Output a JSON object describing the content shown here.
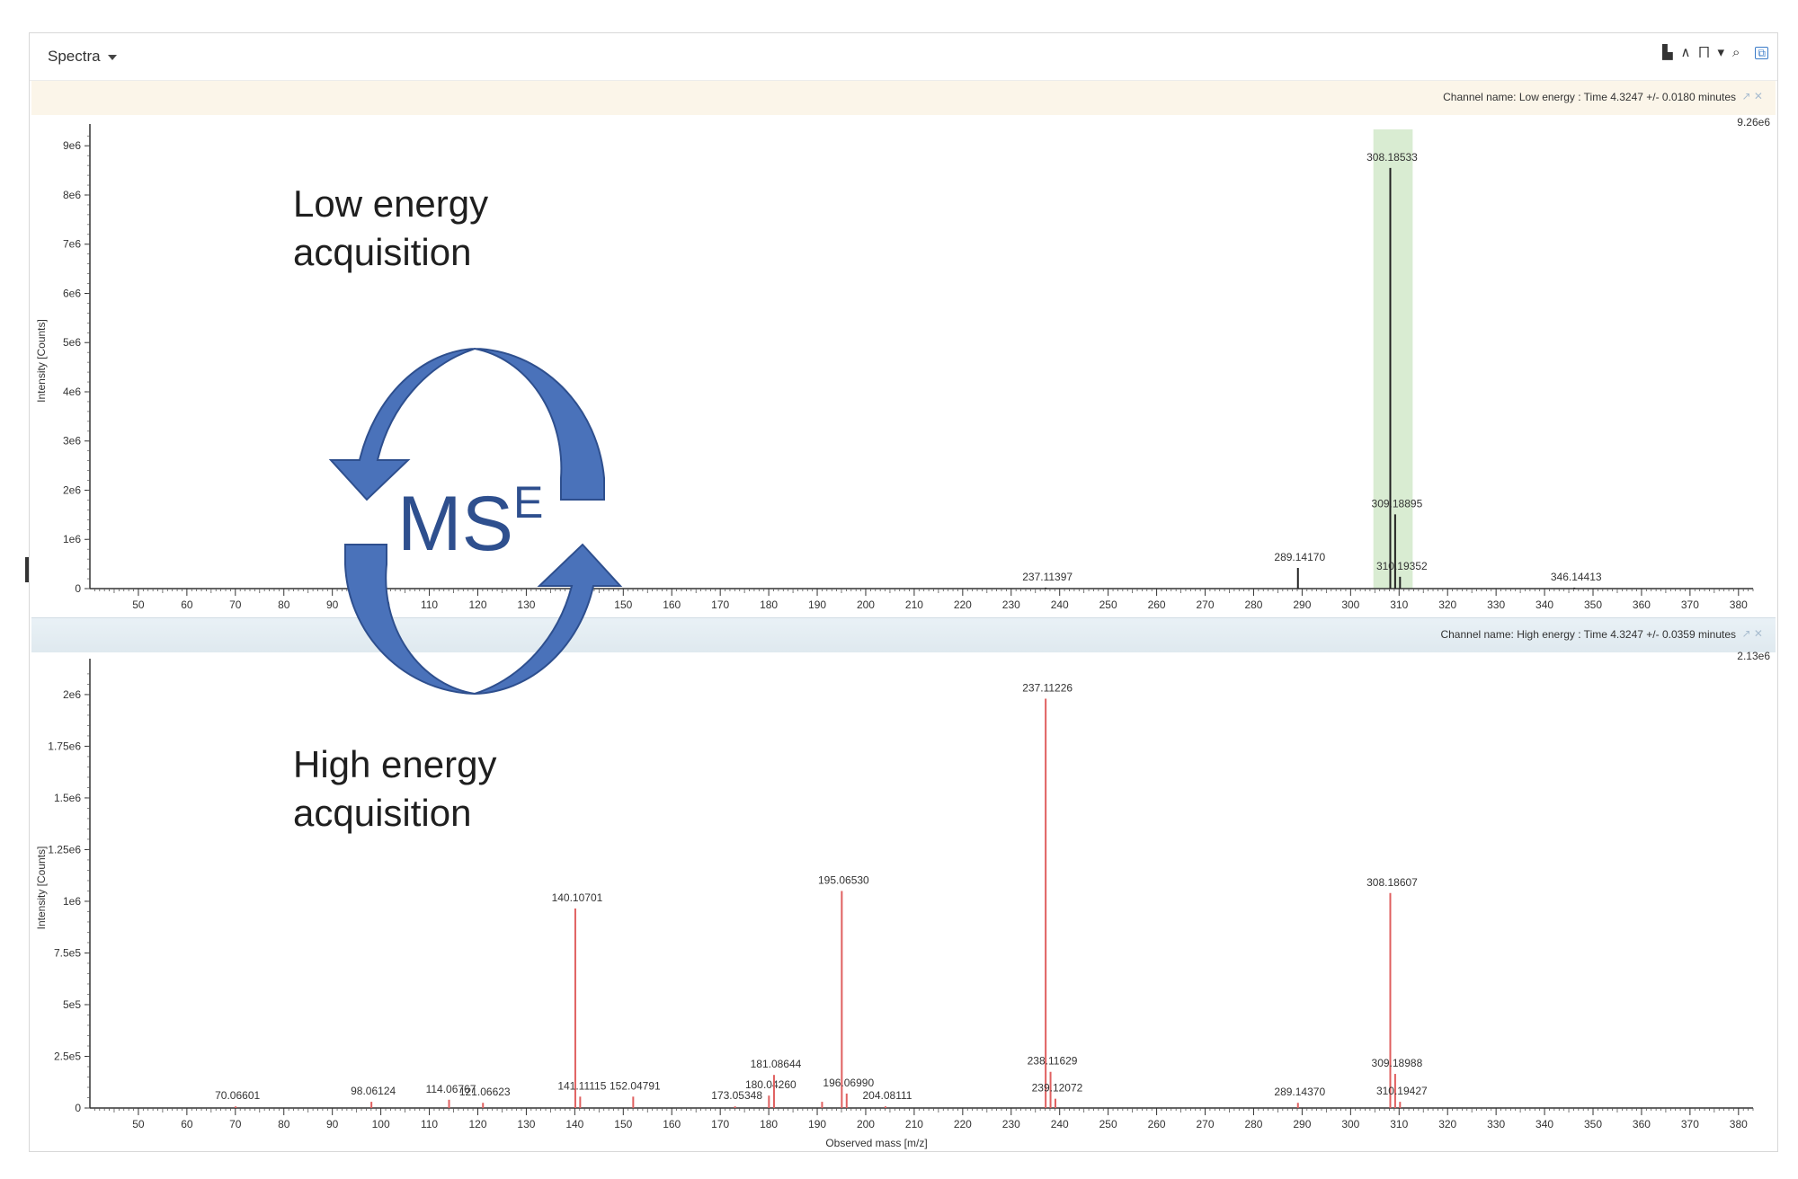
{
  "toolbar": {
    "menu_label": "Spectra",
    "tools": [
      "bar-chart-icon",
      "peak-label-icon",
      "mass-label-icon",
      "dropdown-icon",
      "zoom-icon"
    ]
  },
  "low_panel": {
    "channel_label": "Channel name: Low energy : Time 4.3247 +/- 0.0180 minutes",
    "max_label": "9.26e6",
    "ylabel": "Intensity [Counts]"
  },
  "high_panel": {
    "channel_label": "Channel name: High energy : Time 4.3247 +/- 0.0359 minutes",
    "max_label": "2.13e6",
    "ylabel": "Intensity [Counts]",
    "xlabel": "Observed mass [m/z]"
  },
  "overlay": {
    "low_text": [
      "Low energy",
      "acquisition"
    ],
    "high_text": [
      "High energy",
      "acquisition"
    ],
    "mse_main": "MS",
    "mse_sup": "E",
    "arrow_color": "#3a5fa6",
    "arrow_fill": "#4a72ba"
  },
  "chart_data": [
    {
      "type": "bar",
      "title": "",
      "ylabel": "Intensity [Counts]",
      "xlim": [
        40,
        383
      ],
      "ylim": [
        0,
        9260000
      ],
      "xticks": [
        50,
        60,
        70,
        80,
        90,
        100,
        110,
        120,
        130,
        140,
        150,
        160,
        170,
        180,
        190,
        200,
        210,
        220,
        230,
        240,
        250,
        260,
        270,
        280,
        290,
        300,
        310,
        320,
        330,
        340,
        350,
        360,
        370,
        380
      ],
      "yticks": [
        {
          "v": 0,
          "label": "0"
        },
        {
          "v": 1000000,
          "label": "1e6"
        },
        {
          "v": 2000000,
          "label": "2e6"
        },
        {
          "v": 3000000,
          "label": "3e6"
        },
        {
          "v": 4000000,
          "label": "4e6"
        },
        {
          "v": 5000000,
          "label": "5e6"
        },
        {
          "v": 6000000,
          "label": "6e6"
        },
        {
          "v": 7000000,
          "label": "7e6"
        },
        {
          "v": 8000000,
          "label": "8e6"
        },
        {
          "v": 9000000,
          "label": "9e6"
        }
      ],
      "highlight": {
        "from": 304.7,
        "to": 312.8,
        "color": "#d9ecd2"
      },
      "line_color": "#222222",
      "peaks": [
        {
          "x": 237.11397,
          "y": 20000,
          "label": "237.11397"
        },
        {
          "x": 289.1417,
          "y": 420000,
          "label": "289.14170"
        },
        {
          "x": 308.18533,
          "y": 8550000,
          "label": "308.18533"
        },
        {
          "x": 309.18895,
          "y": 1510000,
          "label": "309.18895"
        },
        {
          "x": 310.19352,
          "y": 240000,
          "label": "310.19352"
        },
        {
          "x": 346.14413,
          "y": 20000,
          "label": "346.14413"
        }
      ]
    },
    {
      "type": "bar",
      "title": "",
      "ylabel": "Intensity [Counts]",
      "xlabel": "Observed mass [m/z]",
      "xlim": [
        40,
        383
      ],
      "ylim": [
        0,
        2130000
      ],
      "xticks": [
        50,
        60,
        70,
        80,
        90,
        100,
        110,
        120,
        130,
        140,
        150,
        160,
        170,
        180,
        190,
        200,
        210,
        220,
        230,
        240,
        250,
        260,
        270,
        280,
        290,
        300,
        310,
        320,
        330,
        340,
        350,
        360,
        370,
        380
      ],
      "yticks": [
        {
          "v": 0,
          "label": "0"
        },
        {
          "v": 250000,
          "label": "2.5e5"
        },
        {
          "v": 500000,
          "label": "5e5"
        },
        {
          "v": 750000,
          "label": "7.5e5"
        },
        {
          "v": 1000000,
          "label": "1e6"
        },
        {
          "v": 1250000,
          "label": "1.25e6"
        },
        {
          "v": 1500000,
          "label": "1.5e6"
        },
        {
          "v": 1750000,
          "label": "1.75e6"
        },
        {
          "v": 2000000,
          "label": "2e6"
        }
      ],
      "line_color": "#e06060",
      "peaks": [
        {
          "x": 70.06601,
          "y": 8000,
          "label": "70.06601"
        },
        {
          "x": 98.06124,
          "y": 30000,
          "label": "98.06124"
        },
        {
          "x": 114.06767,
          "y": 40000,
          "label": "114.06767"
        },
        {
          "x": 121.06623,
          "y": 25000,
          "label": "121.06623"
        },
        {
          "x": 140.10701,
          "y": 965000,
          "label": "140.10701"
        },
        {
          "x": 141.11115,
          "y": 55000,
          "label": "141.11115"
        },
        {
          "x": 152.04791,
          "y": 55000,
          "label": "152.04791"
        },
        {
          "x": 173.05348,
          "y": 8000,
          "label": "173.05348"
        },
        {
          "x": 180.0426,
          "y": 60000,
          "label": "180.04260"
        },
        {
          "x": 181.08644,
          "y": 160000,
          "label": "181.08644"
        },
        {
          "x": 191.0,
          "y": 30000,
          "label": ""
        },
        {
          "x": 195.0653,
          "y": 1050000,
          "label": "195.06530"
        },
        {
          "x": 196.0699,
          "y": 70000,
          "label": "196.06990"
        },
        {
          "x": 204.08111,
          "y": 8000,
          "label": "204.08111"
        },
        {
          "x": 237.11226,
          "y": 1980000,
          "label": "237.11226"
        },
        {
          "x": 238.11629,
          "y": 175000,
          "label": "238.11629"
        },
        {
          "x": 239.12072,
          "y": 45000,
          "label": "239.12072"
        },
        {
          "x": 289.1437,
          "y": 25000,
          "label": "289.14370"
        },
        {
          "x": 308.18607,
          "y": 1040000,
          "label": "308.18607"
        },
        {
          "x": 309.18988,
          "y": 165000,
          "label": "309.18988"
        },
        {
          "x": 310.19427,
          "y": 30000,
          "label": "310.19427"
        }
      ]
    }
  ]
}
